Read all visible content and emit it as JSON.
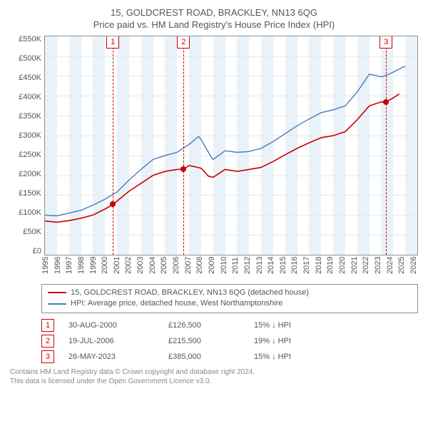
{
  "title_line1": "15, GOLDCREST ROAD, BRACKLEY, NN13 6QG",
  "title_line2": "Price paid vs. HM Land Registry's House Price Index (HPI)",
  "chart": {
    "type": "line",
    "background_color": "#ffffff",
    "grid_color": "#e8e8e8",
    "border_color": "#909090",
    "band_color": "#e9f2f9",
    "text_color": "#555555",
    "x_year_min": 1995,
    "x_year_max": 2026,
    "xtick_step": 1,
    "y_min": 0,
    "y_max": 550000,
    "ytick_step": 50000,
    "y_tick_labels": [
      "£550K",
      "£500K",
      "£450K",
      "£400K",
      "£350K",
      "£300K",
      "£250K",
      "£200K",
      "£150K",
      "£100K",
      "£50K",
      "£0"
    ],
    "x_tick_labels": [
      "1995",
      "1996",
      "1997",
      "1998",
      "1999",
      "2000",
      "2001",
      "2002",
      "2003",
      "2004",
      "2005",
      "2006",
      "2007",
      "2008",
      "2009",
      "2010",
      "2011",
      "2012",
      "2013",
      "2014",
      "2015",
      "2016",
      "2017",
      "2018",
      "2019",
      "2020",
      "2021",
      "2022",
      "2023",
      "2024",
      "2025",
      "2026"
    ],
    "series": [
      {
        "name": "address_line",
        "legend": "15, GOLDCREST ROAD, BRACKLEY, NN13 6QG (detached house)",
        "color": "#cc0000",
        "line_width": 1.6,
        "points_year_value": [
          [
            1995.0,
            85000
          ],
          [
            1996.0,
            82000
          ],
          [
            1997.0,
            86000
          ],
          [
            1998.0,
            92000
          ],
          [
            1999.0,
            100000
          ],
          [
            2000.0,
            115000
          ],
          [
            2000.66,
            126500
          ],
          [
            2001.0,
            135000
          ],
          [
            2002.0,
            160000
          ],
          [
            2003.0,
            180000
          ],
          [
            2004.0,
            200000
          ],
          [
            2005.0,
            210000
          ],
          [
            2006.0,
            215000
          ],
          [
            2006.55,
            215500
          ],
          [
            2007.0,
            225000
          ],
          [
            2008.0,
            218000
          ],
          [
            2008.6,
            198000
          ],
          [
            2009.0,
            195000
          ],
          [
            2010.0,
            215000
          ],
          [
            2011.0,
            210000
          ],
          [
            2012.0,
            215000
          ],
          [
            2013.0,
            220000
          ],
          [
            2014.0,
            235000
          ],
          [
            2015.0,
            252000
          ],
          [
            2016.0,
            268000
          ],
          [
            2017.0,
            282000
          ],
          [
            2018.0,
            295000
          ],
          [
            2019.0,
            300000
          ],
          [
            2020.0,
            310000
          ],
          [
            2021.0,
            340000
          ],
          [
            2022.0,
            375000
          ],
          [
            2023.0,
            385000
          ],
          [
            2023.4,
            385000
          ],
          [
            2024.0,
            395000
          ],
          [
            2024.5,
            405000
          ]
        ]
      },
      {
        "name": "hpi_line",
        "legend": "HPI: Average price, detached house, West Northamptonshire",
        "color": "#4a7ab8",
        "line_width": 1.4,
        "points_year_value": [
          [
            1995.0,
            100000
          ],
          [
            1996.0,
            98000
          ],
          [
            1997.0,
            105000
          ],
          [
            1998.0,
            112000
          ],
          [
            1999.0,
            125000
          ],
          [
            2000.0,
            140000
          ],
          [
            2001.0,
            158000
          ],
          [
            2002.0,
            188000
          ],
          [
            2003.0,
            215000
          ],
          [
            2004.0,
            240000
          ],
          [
            2005.0,
            250000
          ],
          [
            2006.0,
            258000
          ],
          [
            2007.0,
            278000
          ],
          [
            2007.8,
            298000
          ],
          [
            2008.0,
            290000
          ],
          [
            2008.8,
            248000
          ],
          [
            2009.0,
            240000
          ],
          [
            2010.0,
            262000
          ],
          [
            2011.0,
            258000
          ],
          [
            2012.0,
            260000
          ],
          [
            2013.0,
            268000
          ],
          [
            2014.0,
            285000
          ],
          [
            2015.0,
            305000
          ],
          [
            2016.0,
            325000
          ],
          [
            2017.0,
            342000
          ],
          [
            2018.0,
            358000
          ],
          [
            2019.0,
            365000
          ],
          [
            2020.0,
            375000
          ],
          [
            2021.0,
            410000
          ],
          [
            2022.0,
            455000
          ],
          [
            2023.0,
            448000
          ],
          [
            2023.4,
            452000
          ],
          [
            2024.0,
            460000
          ],
          [
            2024.5,
            468000
          ],
          [
            2025.0,
            475000
          ]
        ]
      }
    ],
    "sale_markers": [
      {
        "n": "1",
        "year": 2000.66,
        "value": 126500
      },
      {
        "n": "2",
        "year": 2006.55,
        "value": 215500
      },
      {
        "n": "3",
        "year": 2023.4,
        "value": 385000
      }
    ]
  },
  "sales": [
    {
      "n": "1",
      "date": "30-AUG-2000",
      "price": "£126,500",
      "diff": "15% ↓ HPI"
    },
    {
      "n": "2",
      "date": "19-JUL-2006",
      "price": "£215,500",
      "diff": "19% ↓ HPI"
    },
    {
      "n": "3",
      "date": "26-MAY-2023",
      "price": "£385,000",
      "diff": "15% ↓ HPI"
    }
  ],
  "footer_line1": "Contains HM Land Registry data © Crown copyright and database right 2024.",
  "footer_line2": "This data is licensed under the Open Government Licence v3.0."
}
